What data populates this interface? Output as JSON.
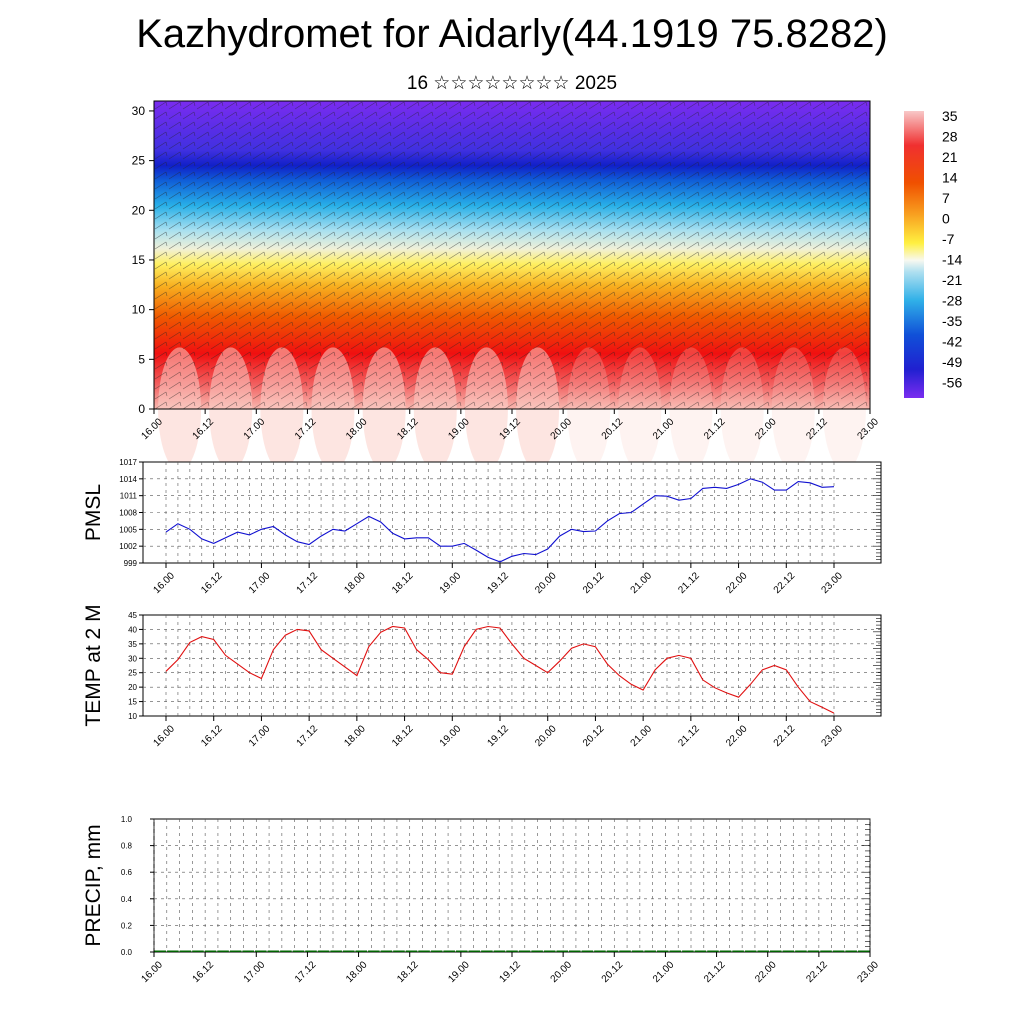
{
  "title": "Kazhydromet for Aidarly(44.1919 75.8282)",
  "subtitle": "16 ☆☆☆☆☆☆☆☆ 2025",
  "time_ticks": [
    "16.00",
    "16.12",
    "17.00",
    "17.12",
    "18.00",
    "18.12",
    "19.00",
    "19.12",
    "20.00",
    "20.12",
    "21.00",
    "21.12",
    "22.00",
    "22.12",
    "23.00"
  ],
  "colors": {
    "pmsl_line": "#1010d0",
    "temp_line": "#e01010",
    "precip_base": "#006400",
    "grid": "#555555"
  },
  "chart_data": [
    {
      "type": "heatmap",
      "title": "",
      "xlabel": "",
      "ylabel": "",
      "x_ticks": [
        "16.00",
        "16.12",
        "17.00",
        "17.12",
        "18.00",
        "18.12",
        "19.00",
        "19.12",
        "20.00",
        "20.12",
        "21.00",
        "21.12",
        "22.00",
        "22.12",
        "23.00"
      ],
      "y_ticks": [
        0,
        5,
        10,
        15,
        20,
        25,
        30
      ],
      "ylim": [
        0,
        31
      ],
      "colorbar_labels": [
        "35",
        "28",
        "21",
        "14",
        "7",
        "0",
        "-7",
        "-14",
        "-21",
        "-28",
        "-35",
        "-42",
        "-49",
        "-56"
      ],
      "overlay": "wind barbs"
    },
    {
      "type": "line",
      "ylabel": "PMSL",
      "x_ticks": [
        "16.00",
        "16.12",
        "17.00",
        "17.12",
        "18.00",
        "18.12",
        "19.00",
        "19.12",
        "20.00",
        "20.12",
        "21.00",
        "21.12",
        "22.00",
        "22.12",
        "23.00"
      ],
      "ylim": [
        999,
        1017
      ],
      "y_ticks": [
        999,
        1002,
        1005,
        1008,
        1011,
        1014,
        1017
      ],
      "series": [
        {
          "values": [
            1004.5,
            1006,
            1005,
            1003.3,
            1002.5,
            1003.5,
            1004.5,
            1004,
            1005,
            1005.5,
            1004,
            1002.8,
            1002.3,
            1003.8,
            1005,
            1004.7,
            1006,
            1007.3,
            1006.3,
            1004.3,
            1003.3,
            1003.5,
            1003.5,
            1002,
            1002,
            1002.5,
            1001.3,
            1000,
            999.2,
            1000.2,
            1000.7,
            1000.5,
            1001.5,
            1003.8,
            1005,
            1004.6,
            1004.7,
            1006.5,
            1007.8,
            1008,
            1009.5,
            1011,
            1010.9,
            1010.2,
            1010.5,
            1012.3,
            1012.5,
            1012.3,
            1013,
            1014,
            1013.4,
            1012,
            1012,
            1013.5,
            1013.3,
            1012.5,
            1012.6
          ]
        }
      ]
    },
    {
      "type": "line",
      "ylabel": "TEMP at 2 M",
      "x_ticks": [
        "16.00",
        "16.12",
        "17.00",
        "17.12",
        "18.00",
        "18.12",
        "19.00",
        "19.12",
        "20.00",
        "20.12",
        "21.00",
        "21.12",
        "22.00",
        "22.12",
        "23.00"
      ],
      "ylim": [
        10,
        45
      ],
      "y_ticks": [
        10,
        15,
        20,
        25,
        30,
        35,
        40,
        45
      ],
      "series": [
        {
          "values": [
            25.5,
            29.5,
            35.5,
            37.5,
            36.5,
            31,
            28,
            25,
            23,
            33,
            38,
            40,
            39.5,
            33,
            30,
            27,
            24,
            34,
            39,
            41,
            40.5,
            33,
            29.5,
            25,
            24.5,
            34,
            40,
            41,
            40.5,
            35,
            30,
            27.5,
            25,
            29,
            33.5,
            35,
            34,
            28,
            24,
            21,
            19,
            26,
            30,
            31,
            30,
            22.5,
            19.8,
            18,
            16.5,
            21,
            26,
            27.5,
            26,
            20,
            15,
            13,
            11
          ]
        }
      ]
    },
    {
      "type": "line",
      "ylabel": "PRECIP, mm",
      "x_ticks": [
        "16.00",
        "16.12",
        "17.00",
        "17.12",
        "18.00",
        "18.12",
        "19.00",
        "19.12",
        "20.00",
        "20.12",
        "21.00",
        "21.12",
        "22.00",
        "22.12",
        "23.00"
      ],
      "ylim": [
        0,
        1
      ],
      "y_ticks": [
        "0.0",
        "0.2",
        "0.4",
        "0.6",
        "0.8",
        "1.0"
      ],
      "series": [
        {
          "values": [
            0,
            0,
            0,
            0,
            0,
            0,
            0,
            0,
            0,
            0,
            0,
            0,
            0,
            0,
            0,
            0,
            0,
            0,
            0,
            0,
            0,
            0,
            0,
            0,
            0,
            0,
            0,
            0,
            0,
            0,
            0,
            0,
            0,
            0,
            0,
            0,
            0,
            0,
            0,
            0,
            0,
            0,
            0,
            0,
            0,
            0,
            0,
            0,
            0,
            0,
            0,
            0,
            0,
            0,
            0,
            0,
            0
          ]
        }
      ]
    }
  ]
}
